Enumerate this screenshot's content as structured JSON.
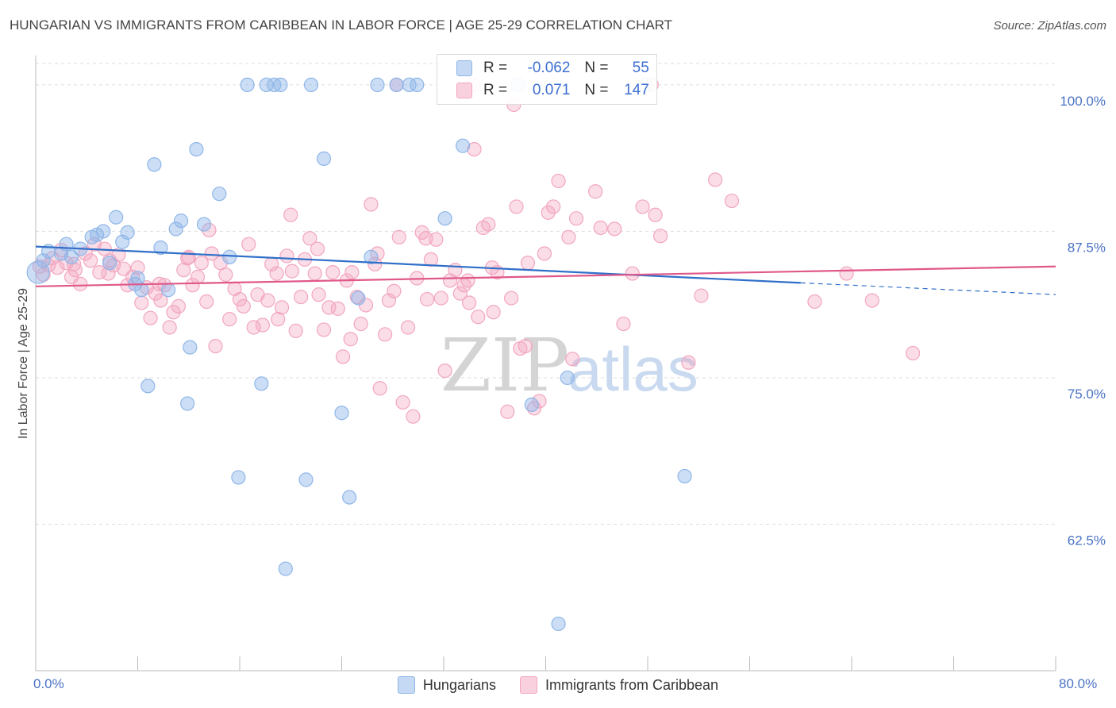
{
  "title": "HUNGARIAN VS IMMIGRANTS FROM CARIBBEAN IN LABOR FORCE | AGE 25-29 CORRELATION CHART",
  "source": "Source: ZipAtlas.com",
  "watermark_zip": "ZIP",
  "watermark_atlas": "atlas",
  "colors": {
    "hungarians": "#8fb6e8",
    "hungarians_line": "#2f6fc9",
    "caribbean": "#f2a6bf",
    "caribbean_line": "#e0588a",
    "axis_text": "#4a72c4",
    "grid": "#dddddd"
  },
  "legend": {
    "r_label": "R =",
    "n_label": "N =",
    "hungarians": {
      "r": "-0.062",
      "n": "55"
    },
    "caribbean": {
      "r": "0.071",
      "n": "147"
    }
  },
  "chart_data": {
    "type": "scatter",
    "title": "HUNGARIAN VS IMMIGRANTS FROM CARIBBEAN IN LABOR FORCE | AGE 25-29 CORRELATION CHART",
    "xlabel": "",
    "ylabel": "In Labor Force | Age 25-29",
    "xlim": [
      0,
      80
    ],
    "ylim": [
      50,
      102.5
    ],
    "x_tick_labels": [
      "0.0%",
      "80.0%"
    ],
    "y_ticks": [
      62.5,
      75.0,
      87.5,
      100.0
    ],
    "y_tick_labels": [
      "62.5%",
      "75.0%",
      "87.5%",
      "100.0%"
    ],
    "grid": true,
    "legend_position": "bottom",
    "series": [
      {
        "name": "Hungarians",
        "trend": {
          "x": [
            0,
            60,
            80
          ],
          "y": [
            86.2,
            83.1,
            82.1
          ],
          "solid_until_x": 60
        },
        "points": [
          [
            0.2,
            84.0
          ],
          [
            1.0,
            85.8
          ],
          [
            2.0,
            85.6
          ],
          [
            2.8,
            85.3
          ],
          [
            3.5,
            86.0
          ],
          [
            4.4,
            87.0
          ],
          [
            4.8,
            87.2
          ],
          [
            5.3,
            87.5
          ],
          [
            5.8,
            84.8
          ],
          [
            6.3,
            88.7
          ],
          [
            6.8,
            86.6
          ],
          [
            7.2,
            87.4
          ],
          [
            8.0,
            83.5
          ],
          [
            8.3,
            82.5
          ],
          [
            8.8,
            74.3
          ],
          [
            9.3,
            93.2
          ],
          [
            9.8,
            86.1
          ],
          [
            10.4,
            82.5
          ],
          [
            11.0,
            87.7
          ],
          [
            11.4,
            88.4
          ],
          [
            11.9,
            72.8
          ],
          [
            12.1,
            77.6
          ],
          [
            12.6,
            94.5
          ],
          [
            13.2,
            88.1
          ],
          [
            14.4,
            90.7
          ],
          [
            15.2,
            85.3
          ],
          [
            15.9,
            66.5
          ],
          [
            16.6,
            100.0
          ],
          [
            17.7,
            74.5
          ],
          [
            18.1,
            100.0
          ],
          [
            18.7,
            100.0
          ],
          [
            19.2,
            100.0
          ],
          [
            19.6,
            58.7
          ],
          [
            21.2,
            66.3
          ],
          [
            21.6,
            100.0
          ],
          [
            22.6,
            93.7
          ],
          [
            24.0,
            72.0
          ],
          [
            24.6,
            64.8
          ],
          [
            25.3,
            81.8
          ],
          [
            26.3,
            85.3
          ],
          [
            26.8,
            100.0
          ],
          [
            28.3,
            100.0
          ],
          [
            29.3,
            100.0
          ],
          [
            29.9,
            100.0
          ],
          [
            32.1,
            88.6
          ],
          [
            33.5,
            94.8
          ],
          [
            37.8,
            100.0
          ],
          [
            38.9,
            72.7
          ],
          [
            41.0,
            54.0
          ],
          [
            41.7,
            75.0
          ],
          [
            47.8,
            100.0
          ],
          [
            50.9,
            66.6
          ],
          [
            0.6,
            85.0
          ],
          [
            2.4,
            86.4
          ],
          [
            7.8,
            83.0
          ]
        ]
      },
      {
        "name": "Immigrants from Caribbean",
        "trend": {
          "x": [
            0,
            80
          ],
          "y": [
            82.8,
            84.5
          ]
        },
        "points": [
          [
            0.3,
            84.5
          ],
          [
            0.6,
            83.8
          ],
          [
            1.0,
            84.6
          ],
          [
            1.3,
            85.2
          ],
          [
            1.7,
            84.4
          ],
          [
            2.0,
            85.9
          ],
          [
            2.4,
            84.8
          ],
          [
            2.8,
            83.6
          ],
          [
            3.1,
            84.2
          ],
          [
            3.5,
            83.0
          ],
          [
            3.9,
            85.6
          ],
          [
            4.3,
            85.0
          ],
          [
            4.6,
            86.4
          ],
          [
            5.0,
            84.0
          ],
          [
            5.4,
            86.0
          ],
          [
            5.8,
            85.0
          ],
          [
            6.1,
            84.6
          ],
          [
            6.5,
            85.5
          ],
          [
            6.9,
            84.3
          ],
          [
            7.2,
            82.9
          ],
          [
            7.6,
            83.6
          ],
          [
            8.0,
            84.4
          ],
          [
            8.3,
            81.4
          ],
          [
            8.7,
            82.7
          ],
          [
            9.0,
            80.1
          ],
          [
            9.4,
            82.2
          ],
          [
            9.8,
            81.6
          ],
          [
            10.1,
            82.9
          ],
          [
            10.5,
            79.3
          ],
          [
            10.8,
            80.6
          ],
          [
            11.2,
            81.1
          ],
          [
            11.6,
            84.2
          ],
          [
            11.9,
            85.2
          ],
          [
            12.3,
            82.9
          ],
          [
            12.7,
            83.6
          ],
          [
            13.0,
            84.8
          ],
          [
            13.4,
            81.5
          ],
          [
            13.8,
            85.6
          ],
          [
            14.1,
            77.7
          ],
          [
            14.5,
            84.8
          ],
          [
            14.9,
            83.8
          ],
          [
            15.2,
            80.0
          ],
          [
            15.6,
            82.6
          ],
          [
            16.0,
            81.7
          ],
          [
            16.3,
            81.1
          ],
          [
            16.7,
            86.4
          ],
          [
            17.1,
            79.3
          ],
          [
            17.4,
            82.1
          ],
          [
            17.8,
            79.5
          ],
          [
            18.2,
            81.6
          ],
          [
            18.5,
            84.7
          ],
          [
            18.9,
            83.9
          ],
          [
            19.3,
            81.0
          ],
          [
            19.7,
            85.4
          ],
          [
            20.0,
            88.9
          ],
          [
            20.4,
            79.0
          ],
          [
            20.8,
            81.9
          ],
          [
            21.1,
            85.1
          ],
          [
            21.5,
            86.9
          ],
          [
            21.9,
            83.9
          ],
          [
            22.2,
            82.1
          ],
          [
            22.6,
            79.1
          ],
          [
            23.0,
            81.0
          ],
          [
            23.3,
            84.0
          ],
          [
            23.7,
            80.9
          ],
          [
            24.1,
            76.8
          ],
          [
            24.4,
            83.3
          ],
          [
            24.8,
            84.0
          ],
          [
            25.2,
            81.9
          ],
          [
            25.5,
            79.6
          ],
          [
            25.9,
            81.2
          ],
          [
            26.3,
            89.8
          ],
          [
            26.6,
            84.7
          ],
          [
            27.0,
            74.1
          ],
          [
            27.4,
            78.7
          ],
          [
            27.7,
            81.6
          ],
          [
            28.1,
            82.4
          ],
          [
            28.5,
            87.0
          ],
          [
            28.8,
            72.9
          ],
          [
            29.2,
            79.3
          ],
          [
            29.6,
            71.7
          ],
          [
            29.9,
            83.5
          ],
          [
            30.3,
            87.4
          ],
          [
            30.7,
            81.7
          ],
          [
            31.0,
            85.1
          ],
          [
            31.4,
            86.8
          ],
          [
            31.8,
            81.8
          ],
          [
            32.1,
            75.6
          ],
          [
            32.5,
            83.3
          ],
          [
            32.9,
            84.2
          ],
          [
            33.3,
            82.2
          ],
          [
            33.6,
            82.9
          ],
          [
            34.0,
            81.4
          ],
          [
            34.4,
            94.5
          ],
          [
            34.7,
            80.2
          ],
          [
            35.1,
            87.8
          ],
          [
            35.5,
            88.1
          ],
          [
            35.8,
            84.4
          ],
          [
            36.2,
            84.0
          ],
          [
            37.0,
            72.1
          ],
          [
            37.3,
            81.8
          ],
          [
            37.7,
            89.6
          ],
          [
            38.0,
            77.5
          ],
          [
            38.4,
            77.7
          ],
          [
            39.1,
            72.4
          ],
          [
            39.5,
            73.0
          ],
          [
            39.9,
            85.6
          ],
          [
            40.2,
            89.1
          ],
          [
            40.6,
            89.6
          ],
          [
            41.0,
            91.8
          ],
          [
            42.1,
            76.6
          ],
          [
            42.4,
            88.6
          ],
          [
            43.9,
            90.9
          ],
          [
            44.3,
            87.8
          ],
          [
            45.4,
            87.7
          ],
          [
            46.1,
            79.6
          ],
          [
            46.8,
            83.9
          ],
          [
            47.6,
            89.6
          ],
          [
            48.3,
            100.0
          ],
          [
            48.6,
            88.9
          ],
          [
            49.0,
            87.1
          ],
          [
            51.2,
            76.3
          ],
          [
            52.2,
            82.0
          ],
          [
            53.3,
            91.9
          ],
          [
            54.6,
            90.1
          ],
          [
            61.1,
            81.5
          ],
          [
            63.6,
            83.9
          ],
          [
            65.6,
            81.6
          ],
          [
            68.8,
            77.1
          ],
          [
            37.5,
            98.3
          ],
          [
            28.3,
            100.0
          ],
          [
            34.3,
            100.0
          ],
          [
            12.0,
            85.3
          ],
          [
            9.7,
            83.0
          ],
          [
            13.6,
            87.6
          ],
          [
            19.0,
            80.0
          ],
          [
            20.1,
            84.1
          ],
          [
            22.1,
            86.0
          ],
          [
            24.7,
            78.3
          ],
          [
            26.8,
            85.6
          ],
          [
            30.6,
            86.9
          ],
          [
            33.9,
            83.3
          ],
          [
            35.9,
            80.6
          ],
          [
            38.6,
            84.8
          ],
          [
            41.8,
            87.0
          ],
          [
            3.0,
            84.7
          ],
          [
            5.7,
            83.9
          ]
        ]
      }
    ]
  },
  "bottom_legend": {
    "hungarians": "Hungarians",
    "caribbean": "Immigrants from Caribbean"
  }
}
